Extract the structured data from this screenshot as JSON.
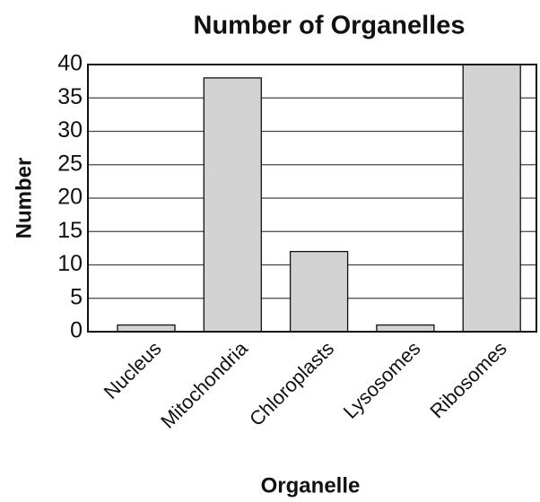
{
  "chart_data": {
    "type": "bar",
    "title": "Number of Organelles",
    "x_label": "Organelle",
    "y_label": "Number",
    "categories": [
      "Nucleus",
      "Mitochondria",
      "Chloroplasts",
      "Lysosomes",
      "Ribosomes"
    ],
    "values": [
      1,
      38,
      12,
      1,
      40
    ],
    "color": "#d3d3d3",
    "ylim": [
      0,
      40
    ],
    "yticks": [
      0,
      5,
      10,
      15,
      20,
      25,
      30,
      35,
      40
    ],
    "grid": true
  }
}
